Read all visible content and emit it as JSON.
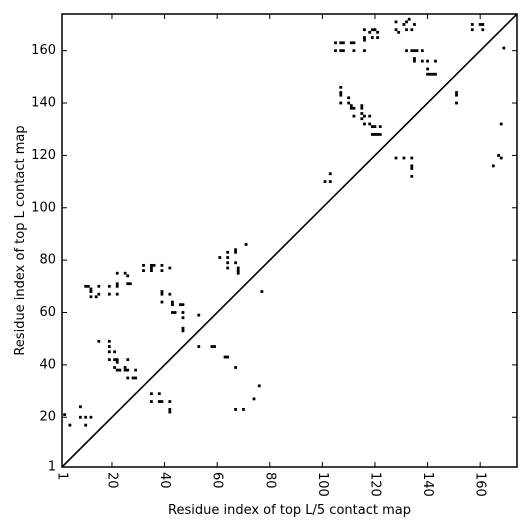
{
  "chart_data": {
    "type": "scatter",
    "title": "",
    "xlabel": "Residue index of top L/5 contact map",
    "ylabel": "Residue index of top L contact map",
    "xlim": [
      1,
      174
    ],
    "ylim": [
      1,
      174
    ],
    "xticks": [
      1,
      20,
      40,
      60,
      80,
      100,
      120,
      140,
      160
    ],
    "yticks": [
      1,
      20,
      40,
      60,
      80,
      100,
      120,
      140,
      160
    ],
    "x_tick_rotation": -90,
    "grid": false,
    "legend": "none",
    "marker": "square",
    "marker_color": "#000000",
    "diagonal_line": true,
    "series": [
      {
        "name": "",
        "points": [
          [
            2,
            21
          ],
          [
            4,
            17
          ],
          [
            8,
            24
          ],
          [
            8,
            20
          ],
          [
            10,
            20
          ],
          [
            10,
            17
          ],
          [
            12,
            20
          ],
          [
            10,
            70
          ],
          [
            11,
            70
          ],
          [
            12,
            69
          ],
          [
            12,
            68
          ],
          [
            12,
            66
          ],
          [
            14,
            66
          ],
          [
            15,
            67
          ],
          [
            15,
            70
          ],
          [
            19,
            70
          ],
          [
            19,
            67
          ],
          [
            22,
            75
          ],
          [
            22,
            71
          ],
          [
            22,
            70
          ],
          [
            22,
            67
          ],
          [
            25,
            75
          ],
          [
            26,
            74
          ],
          [
            26,
            71
          ],
          [
            27,
            71
          ],
          [
            15,
            49
          ],
          [
            19,
            49
          ],
          [
            19,
            47
          ],
          [
            19,
            45
          ],
          [
            19,
            42
          ],
          [
            21,
            45
          ],
          [
            21,
            42
          ],
          [
            22,
            42
          ],
          [
            22,
            41
          ],
          [
            21,
            39
          ],
          [
            22,
            38
          ],
          [
            23,
            38
          ],
          [
            25,
            39
          ],
          [
            25,
            38
          ],
          [
            26,
            42
          ],
          [
            26,
            35
          ],
          [
            26,
            38
          ],
          [
            28,
            35
          ],
          [
            29,
            38
          ],
          [
            29,
            35
          ],
          [
            32,
            78
          ],
          [
            32,
            76
          ],
          [
            35,
            78
          ],
          [
            35,
            77
          ],
          [
            35,
            76
          ],
          [
            36,
            78
          ],
          [
            39,
            78
          ],
          [
            39,
            76
          ],
          [
            42,
            77
          ],
          [
            39,
            68
          ],
          [
            39,
            67
          ],
          [
            39,
            64
          ],
          [
            42,
            67
          ],
          [
            43,
            64
          ],
          [
            43,
            63
          ],
          [
            43,
            60
          ],
          [
            44,
            60
          ],
          [
            46,
            63
          ],
          [
            47,
            63
          ],
          [
            47,
            60
          ],
          [
            47,
            58
          ],
          [
            47,
            54
          ],
          [
            47,
            53
          ],
          [
            53,
            59
          ],
          [
            53,
            47
          ],
          [
            35,
            29
          ],
          [
            35,
            26
          ],
          [
            38,
            29
          ],
          [
            38,
            26
          ],
          [
            39,
            26
          ],
          [
            42,
            26
          ],
          [
            42,
            23
          ],
          [
            42,
            22
          ],
          [
            58,
            47
          ],
          [
            59,
            47
          ],
          [
            61,
            81
          ],
          [
            63,
            43
          ],
          [
            64,
            43
          ],
          [
            64,
            83
          ],
          [
            64,
            81
          ],
          [
            64,
            79
          ],
          [
            64,
            77
          ],
          [
            67,
            84
          ],
          [
            67,
            83
          ],
          [
            67,
            79
          ],
          [
            68,
            77
          ],
          [
            68,
            76
          ],
          [
            68,
            75
          ],
          [
            67,
            39
          ],
          [
            67,
            23
          ],
          [
            71,
            86
          ],
          [
            70,
            23
          ],
          [
            74,
            27
          ],
          [
            76,
            32
          ],
          [
            77,
            68
          ],
          [
            101,
            110
          ],
          [
            103,
            113
          ],
          [
            103,
            110
          ],
          [
            105,
            163
          ],
          [
            105,
            160
          ],
          [
            107,
            163
          ],
          [
            107,
            160
          ],
          [
            108,
            163
          ],
          [
            108,
            160
          ],
          [
            111,
            163
          ],
          [
            112,
            163
          ],
          [
            112,
            160
          ],
          [
            116,
            168
          ],
          [
            116,
            165
          ],
          [
            116,
            164
          ],
          [
            116,
            160
          ],
          [
            118,
            167
          ],
          [
            119,
            168
          ],
          [
            119,
            165
          ],
          [
            120,
            168
          ],
          [
            121,
            167
          ],
          [
            121,
            165
          ],
          [
            107,
            146
          ],
          [
            107,
            144
          ],
          [
            107,
            143
          ],
          [
            107,
            140
          ],
          [
            110,
            142
          ],
          [
            110,
            140
          ],
          [
            111,
            139
          ],
          [
            111,
            138
          ],
          [
            112,
            138
          ],
          [
            112,
            135
          ],
          [
            115,
            139
          ],
          [
            115,
            138
          ],
          [
            115,
            136
          ],
          [
            115,
            134
          ],
          [
            116,
            135
          ],
          [
            116,
            132
          ],
          [
            118,
            135
          ],
          [
            118,
            132
          ],
          [
            119,
            131
          ],
          [
            119,
            128
          ],
          [
            120,
            131
          ],
          [
            120,
            128
          ],
          [
            121,
            128
          ],
          [
            122,
            131
          ],
          [
            122,
            128
          ],
          [
            128,
            171
          ],
          [
            128,
            168
          ],
          [
            129,
            167
          ],
          [
            131,
            170
          ],
          [
            132,
            171
          ],
          [
            132,
            168
          ],
          [
            133,
            172
          ],
          [
            134,
            168
          ],
          [
            135,
            170
          ],
          [
            132,
            160
          ],
          [
            134,
            160
          ],
          [
            135,
            160
          ],
          [
            135,
            157
          ],
          [
            135,
            156
          ],
          [
            136,
            160
          ],
          [
            138,
            160
          ],
          [
            138,
            156
          ],
          [
            140,
            156
          ],
          [
            140,
            153
          ],
          [
            140,
            151
          ],
          [
            141,
            151
          ],
          [
            142,
            151
          ],
          [
            143,
            156
          ],
          [
            143,
            151
          ],
          [
            128,
            119
          ],
          [
            131,
            119
          ],
          [
            134,
            119
          ],
          [
            134,
            116
          ],
          [
            134,
            115
          ],
          [
            134,
            112
          ],
          [
            151,
            144
          ],
          [
            151,
            143
          ],
          [
            151,
            140
          ],
          [
            157,
            170
          ],
          [
            157,
            168
          ],
          [
            160,
            170
          ],
          [
            161,
            170
          ],
          [
            161,
            168
          ],
          [
            165,
            116
          ],
          [
            167,
            120
          ],
          [
            168,
            119
          ],
          [
            168,
            132
          ],
          [
            169,
            161
          ]
        ]
      }
    ]
  }
}
